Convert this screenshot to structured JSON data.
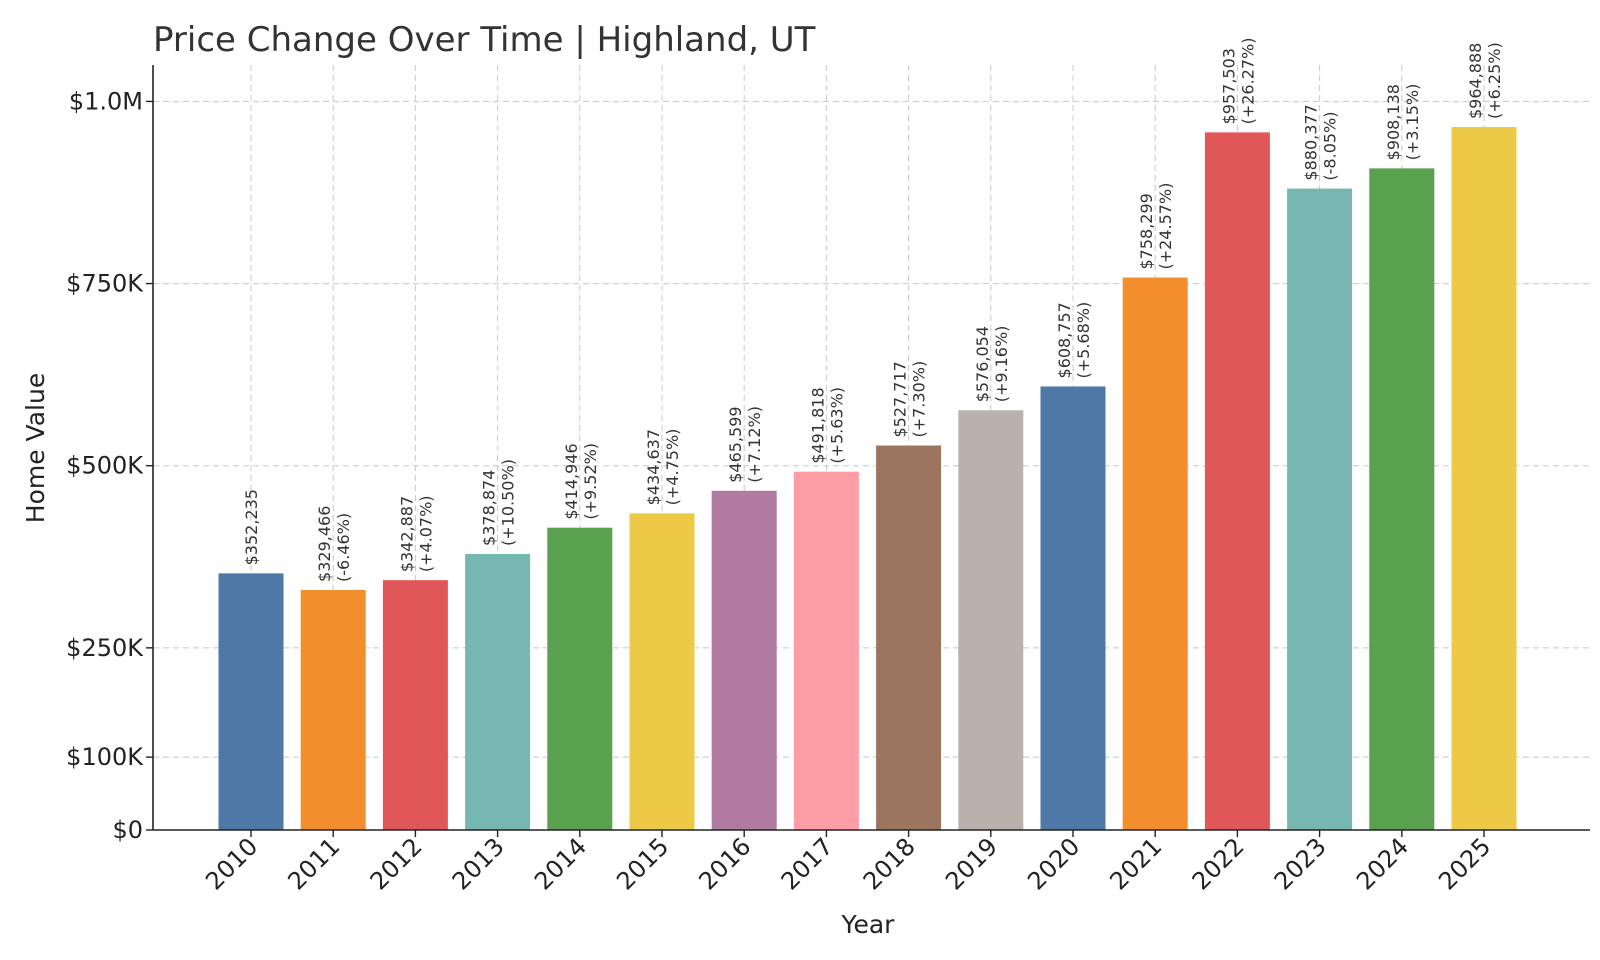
{
  "chart_data": {
    "type": "bar",
    "title": "Price Change Over Time | Highland, UT",
    "xlabel": "Year",
    "ylabel": "Home Value",
    "ylim": [
      0,
      1050000
    ],
    "grid": true,
    "categories": [
      "2010",
      "2011",
      "2012",
      "2013",
      "2014",
      "2015",
      "2016",
      "2017",
      "2018",
      "2019",
      "2020",
      "2021",
      "2022",
      "2023",
      "2024",
      "2025"
    ],
    "values": [
      352235,
      329466,
      342887,
      378874,
      414946,
      434637,
      465599,
      491818,
      527717,
      576054,
      608757,
      758299,
      957503,
      880377,
      908138,
      964888
    ],
    "value_labels": [
      "$352,235",
      "$329,466",
      "$342,887",
      "$378,874",
      "$414,946",
      "$434,637",
      "$465,599",
      "$491,818",
      "$527,717",
      "$576,054",
      "$608,757",
      "$758,299",
      "$957,503",
      "$880,377",
      "$908,138",
      "$964,888"
    ],
    "change_labels": [
      "",
      "(-6.46%)",
      "(+4.07%)",
      "(+10.50%)",
      "(+9.52%)",
      "(+4.75%)",
      "(+7.12%)",
      "(+5.63%)",
      "(+7.30%)",
      "(+9.16%)",
      "(+5.68%)",
      "(+24.57%)",
      "(+26.27%)",
      "(-8.05%)",
      "(+3.15%)",
      "(+6.25%)"
    ],
    "colors": [
      "#4e79a7",
      "#f28e2b",
      "#e15759",
      "#76b7b2",
      "#59a14f",
      "#edc948",
      "#b07aa1",
      "#ff9da7",
      "#9c755f",
      "#bab0ac",
      "#4e79a7",
      "#f28e2b",
      "#e15759",
      "#76b7b2",
      "#59a14f",
      "#edc948"
    ],
    "y_ticks": [
      0,
      100000,
      250000,
      500000,
      750000,
      1000000
    ],
    "y_tick_labels": [
      "$0",
      "$100K",
      "$250K",
      "$500K",
      "$750K",
      "$1.0M"
    ]
  }
}
